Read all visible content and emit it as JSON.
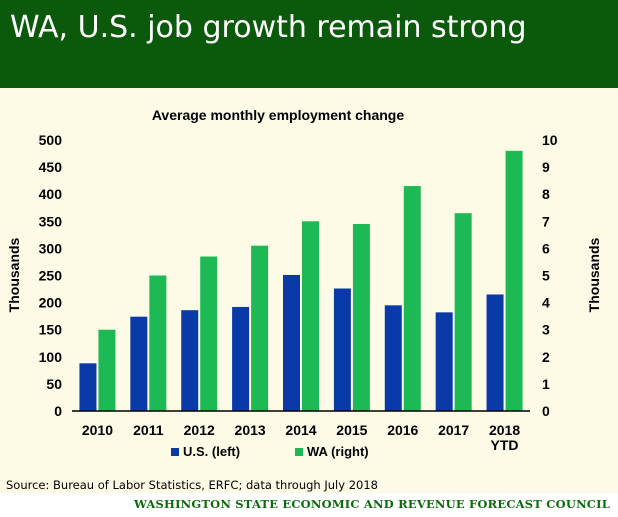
{
  "header": {
    "title": "WA, U.S. job growth remain strong"
  },
  "colors": {
    "header_bg": "#0b5a0b",
    "panel_bg": "#fdfbe6",
    "us": "#0a3aa8",
    "wa": "#1db954",
    "footer": "#0b6b0b"
  },
  "chart_data": {
    "type": "bar",
    "title": "Average monthly employment change",
    "categories": [
      "2010",
      "2011",
      "2012",
      "2013",
      "2014",
      "2015",
      "2016",
      "2017",
      "2018\nYTD"
    ],
    "series": [
      {
        "name": "U.S. (left)",
        "axis": "left",
        "values": [
          88,
          174,
          186,
          192,
          251,
          226,
          195,
          182,
          215
        ]
      },
      {
        "name": "WA (right)",
        "axis": "right",
        "values": [
          3.0,
          5.0,
          5.7,
          6.1,
          7.0,
          6.9,
          8.3,
          7.3,
          9.6
        ]
      }
    ],
    "ylabel": "Thousands",
    "y2label": "Thousands",
    "ylim": [
      0,
      500
    ],
    "y2lim": [
      0,
      10
    ],
    "yticks": [
      "0",
      "50",
      "100",
      "150",
      "200",
      "250",
      "300",
      "350",
      "400",
      "450",
      "500"
    ],
    "y2ticks": [
      "0",
      "1",
      "2",
      "3",
      "4",
      "5",
      "6",
      "7",
      "8",
      "9",
      "10"
    ],
    "grid": false,
    "legend_position": "bottom"
  },
  "source": "Source: Bureau of Labor Statistics, ERFC; data through July 2018",
  "footer": "WASHINGTON STATE ECONOMIC AND REVENUE FORECAST COUNCIL"
}
